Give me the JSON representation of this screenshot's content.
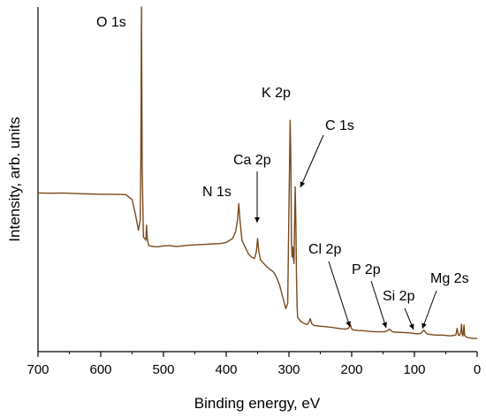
{
  "chart_data": {
    "type": "line",
    "xlabel": "Binding energy, eV",
    "ylabel": "Intensity, arb. units",
    "xlim": [
      700,
      0
    ],
    "x_reversed": true,
    "xticks": [
      700,
      600,
      500,
      400,
      300,
      200,
      100,
      0
    ],
    "y_tick_labels": false,
    "ylim": [
      0,
      100
    ],
    "grid": false,
    "series": [
      {
        "color": "#7a4a1c",
        "x": [
          700,
          680,
          660,
          640,
          620,
          600,
          580,
          560,
          550,
          545,
          540,
          537,
          536,
          535,
          534,
          532,
          530,
          528,
          527,
          526,
          524,
          520,
          510,
          500,
          490,
          480,
          470,
          460,
          450,
          440,
          430,
          420,
          410,
          400,
          390,
          385,
          382,
          380,
          378,
          375,
          370,
          365,
          360,
          355,
          352,
          350,
          348,
          345,
          340,
          335,
          330,
          325,
          320,
          315,
          310,
          305,
          302,
          300,
          298,
          297,
          296,
          295,
          294,
          293,
          292,
          291,
          290,
          289,
          288,
          287,
          286,
          285,
          284,
          283,
          282,
          281,
          280,
          278,
          276,
          274,
          272,
          270,
          268,
          266,
          264,
          260,
          250,
          240,
          230,
          220,
          210,
          205,
          202,
          200,
          198,
          195,
          190,
          180,
          170,
          160,
          150,
          145,
          140,
          135,
          130,
          120,
          110,
          105,
          100,
          95,
          90,
          85,
          80,
          75,
          70,
          65,
          60,
          55,
          50,
          45,
          40,
          38,
          36,
          34,
          32,
          30,
          28,
          26,
          25,
          24,
          23,
          22,
          21,
          20,
          18,
          15,
          10,
          5,
          0
        ],
        "y": [
          44.2,
          44.1,
          44.2,
          44.0,
          43.9,
          43.8,
          43.8,
          43.7,
          42.2,
          38.0,
          33.0,
          36.0,
          55.0,
          100.0,
          52.0,
          31.0,
          30.5,
          30.0,
          34.5,
          31.0,
          28.5,
          28.2,
          28.0,
          28.3,
          28.4,
          28.1,
          28.3,
          28.5,
          28.6,
          28.7,
          28.8,
          28.9,
          29.0,
          29.3,
          30.5,
          32.5,
          36.0,
          41.0,
          36.0,
          30.0,
          28.0,
          26.0,
          25.0,
          24.5,
          26.5,
          30.5,
          26.5,
          24.0,
          23.0,
          22.0,
          21.2,
          20.5,
          19.0,
          16.5,
          13.0,
          9.5,
          11.0,
          40.0,
          66.0,
          55.0,
          30.0,
          25.0,
          28.0,
          25.0,
          23.0,
          35.0,
          46.0,
          36.0,
          20.0,
          10.0,
          6.8,
          6.5,
          6.3,
          6.0,
          5.8,
          5.7,
          5.5,
          5.3,
          5.0,
          4.9,
          4.7,
          4.8,
          5.5,
          6.5,
          5.0,
          4.4,
          4.2,
          4.0,
          3.8,
          3.5,
          3.3,
          3.6,
          4.6,
          3.4,
          3.1,
          3.0,
          2.9,
          2.8,
          2.6,
          2.5,
          2.5,
          2.6,
          3.3,
          2.5,
          2.4,
          2.3,
          2.2,
          2.1,
          2.0,
          1.9,
          2.0,
          3.0,
          1.9,
          1.7,
          1.6,
          1.5,
          1.5,
          1.5,
          1.4,
          1.3,
          1.3,
          1.5,
          1.4,
          1.6,
          3.5,
          1.5,
          1.4,
          2.5,
          4.8,
          2.0,
          1.2,
          2.0,
          4.5,
          1.5,
          1.0,
          0.8,
          0.6,
          0.5,
          0.5
        ]
      }
    ],
    "annotations": [
      {
        "text": "O 1s",
        "x": 535,
        "y": 100,
        "arrow": false
      },
      {
        "text": "N 1s",
        "x": 380,
        "y": 41,
        "arrow": false
      },
      {
        "text": "Ca 2p",
        "x": 350,
        "y": 30.5,
        "arrow": true
      },
      {
        "text": "K 2p",
        "x": 297,
        "y": 66,
        "arrow": false
      },
      {
        "text": "C 1s",
        "x": 289,
        "y": 46,
        "arrow": true
      },
      {
        "text": "Cl 2p",
        "x": 200,
        "y": 4.6,
        "arrow": true
      },
      {
        "text": "P 2p",
        "x": 135,
        "y": 3.3,
        "arrow": true
      },
      {
        "text": "Si 2p",
        "x": 100,
        "y": 2.5,
        "arrow": true
      },
      {
        "text": "Mg 2s",
        "x": 85,
        "y": 3.0,
        "arrow": true
      }
    ]
  }
}
